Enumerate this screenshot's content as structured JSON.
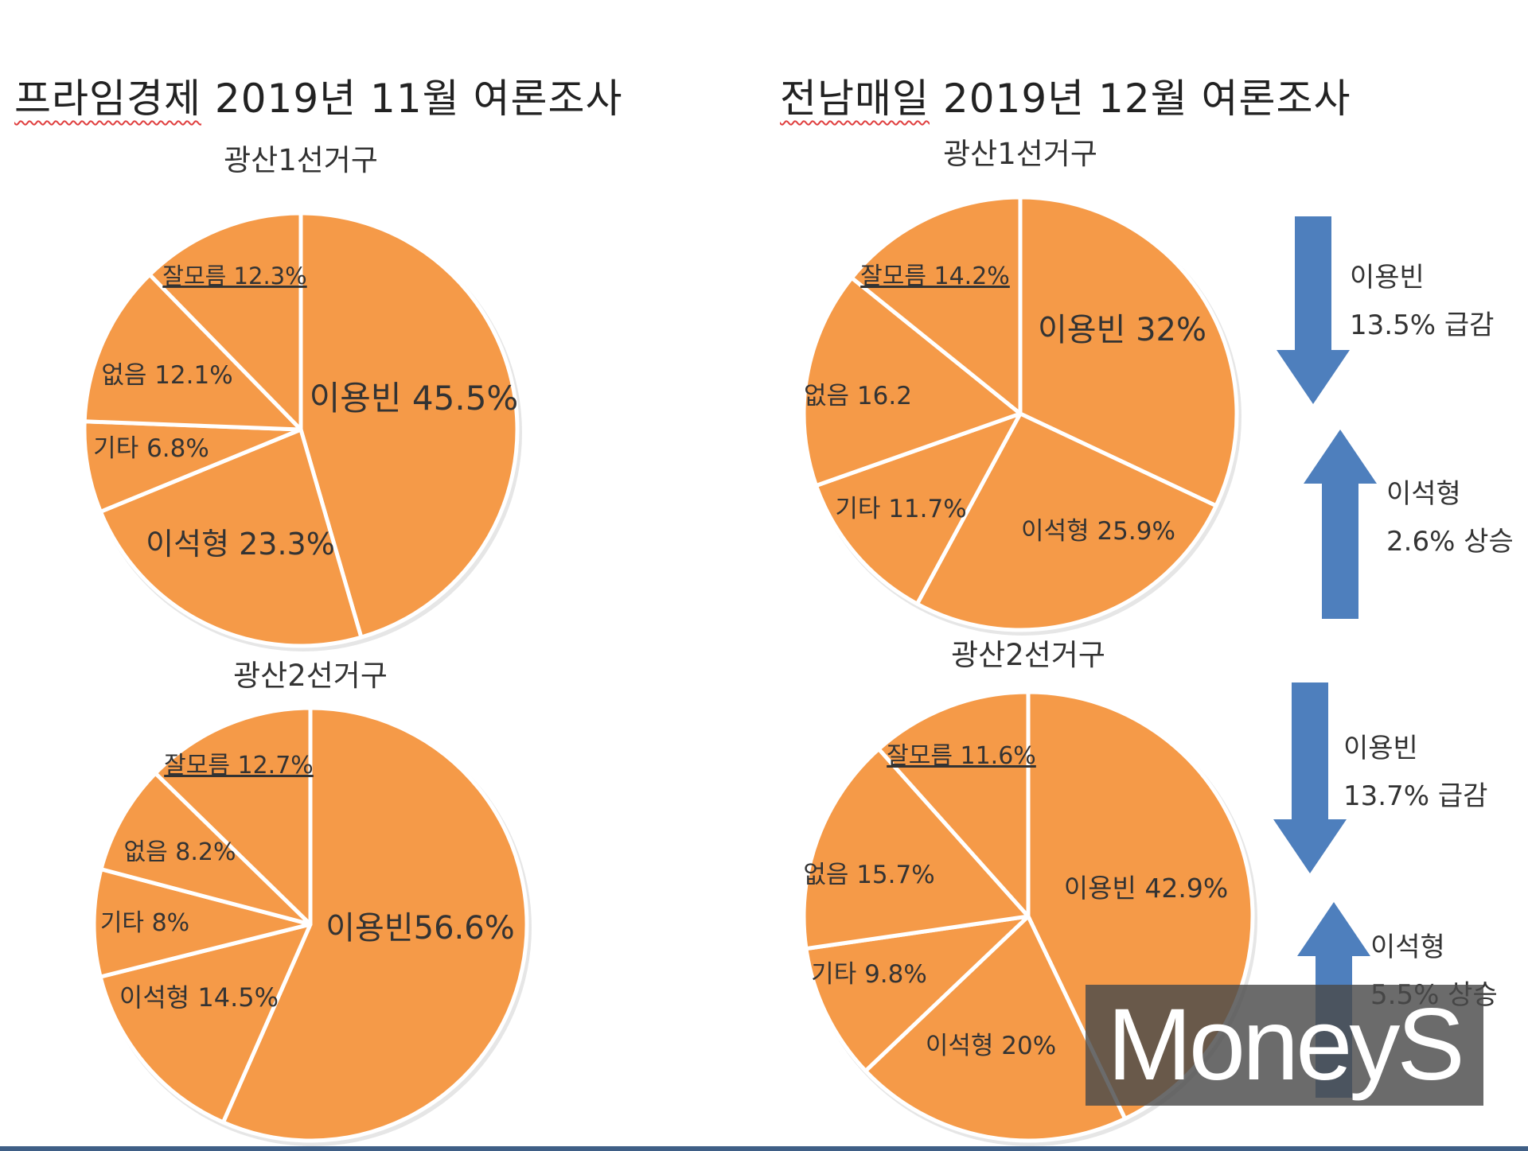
{
  "titles": {
    "left": {
      "source": "프라임경제",
      "rest": " 2019년 11월 여론조사"
    },
    "right": {
      "source": "전남매일",
      "rest": " 2019년 12월 여론조사"
    }
  },
  "colors": {
    "slice": "#f59a48",
    "arrow": "#4e7fbd",
    "slice_border": "#ffffff"
  },
  "changes": {
    "district1": [
      {
        "direction": "down",
        "name": "이용빈",
        "value_text": "13.5% 급감",
        "value": 13.5
      },
      {
        "direction": "up",
        "name": "이석형",
        "value_text": "2.6% 상승",
        "value": 2.6
      }
    ],
    "district2": [
      {
        "direction": "down",
        "name": "이용빈",
        "value_text": "13.7% 급감",
        "value": 13.7
      },
      {
        "direction": "up",
        "name": "이석형",
        "value_text": "5.5% 상승",
        "value": 5.5
      }
    ]
  },
  "watermark": "MoneyS",
  "chart_data": [
    {
      "type": "pie",
      "survey": "프라임경제 2019년 11월 여론조사",
      "title": "광산1선거구",
      "slices": [
        {
          "name": "이용빈",
          "value": 45.5,
          "label": "이용빈 45.5%"
        },
        {
          "name": "이석형",
          "value": 23.3,
          "label": "이석형 23.3%"
        },
        {
          "name": "기타",
          "value": 6.8,
          "label": "기타 6.8%"
        },
        {
          "name": "없음",
          "value": 12.1,
          "label": "없음 12.1%"
        },
        {
          "name": "잘모름",
          "value": 12.3,
          "label": "잘모름 12.3%"
        }
      ]
    },
    {
      "type": "pie",
      "survey": "프라임경제 2019년 11월 여론조사",
      "title": "광산2선거구",
      "slices": [
        {
          "name": "이용빈",
          "value": 56.6,
          "label": "이용빈56.6%"
        },
        {
          "name": "이석형",
          "value": 14.5,
          "label": "이석형 14.5%"
        },
        {
          "name": "기타",
          "value": 8,
          "label": "기타 8%"
        },
        {
          "name": "없음",
          "value": 8.2,
          "label": "없음 8.2%"
        },
        {
          "name": "잘모름",
          "value": 12.7,
          "label": "잘모름 12.7%"
        }
      ]
    },
    {
      "type": "pie",
      "survey": "전남매일 2019년 12월 여론조사",
      "title": "광산1선거구",
      "slices": [
        {
          "name": "이용빈",
          "value": 32,
          "label": "이용빈 32%"
        },
        {
          "name": "이석형",
          "value": 25.9,
          "label": "이석형 25.9%"
        },
        {
          "name": "기타",
          "value": 11.7,
          "label": "기타 11.7%"
        },
        {
          "name": "없음",
          "value": 16.2,
          "label": "없음 16.2"
        },
        {
          "name": "잘모름",
          "value": 14.2,
          "label": "잘모름 14.2%"
        }
      ]
    },
    {
      "type": "pie",
      "survey": "전남매일 2019년 12월 여론조사",
      "title": "광산2선거구",
      "slices": [
        {
          "name": "이용빈",
          "value": 42.9,
          "label": "이용빈 42.9%"
        },
        {
          "name": "이석형",
          "value": 20,
          "label": "이석형 20%"
        },
        {
          "name": "기타",
          "value": 9.8,
          "label": "기타 9.8%"
        },
        {
          "name": "없음",
          "value": 15.7,
          "label": "없음 15.7%"
        },
        {
          "name": "잘모름",
          "value": 11.6,
          "label": "잘모름 11.6%"
        }
      ]
    }
  ]
}
